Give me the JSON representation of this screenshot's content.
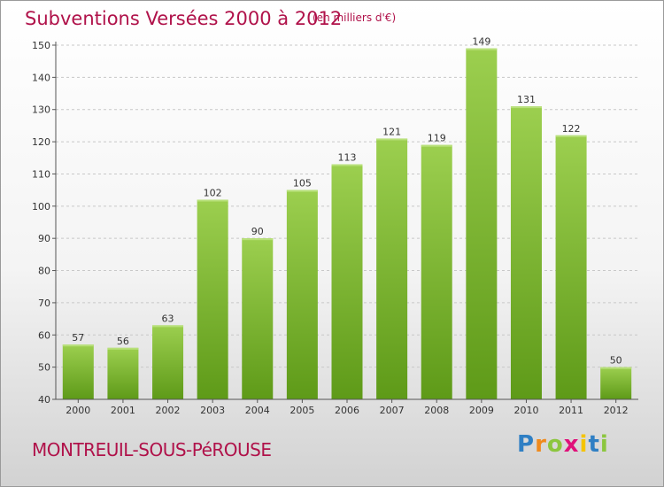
{
  "header": {
    "title": "Subventions Versées 2000 à 2012",
    "unit_note": "(en milliers d'€)"
  },
  "footer": {
    "commune": "MONTREUIL-SOUS-PéROUSE",
    "logo": {
      "text": "Proxiti",
      "letters": [
        {
          "ch": "P",
          "color": "#2f7fc4"
        },
        {
          "ch": "r",
          "color": "#f08a1c"
        },
        {
          "ch": "o",
          "color": "#8cc63f"
        },
        {
          "ch": "x",
          "color": "#e0117a"
        },
        {
          "ch": "i",
          "color": "#f5c400"
        },
        {
          "ch": "t",
          "color": "#2f7fc4"
        },
        {
          "ch": "i",
          "color": "#8cc63f"
        }
      ]
    }
  },
  "colors": {
    "title": "#b0124a",
    "bar_top": "#9ccf4f",
    "bar_bottom": "#5e9a18",
    "grid": "#c8c8c8",
    "axis": "#555555"
  },
  "chart_data": {
    "type": "bar",
    "categories": [
      "2000",
      "2001",
      "2002",
      "2003",
      "2004",
      "2005",
      "2006",
      "2007",
      "2008",
      "2009",
      "2010",
      "2011",
      "2012"
    ],
    "values": [
      57,
      56,
      63,
      102,
      90,
      105,
      113,
      121,
      119,
      149,
      131,
      122,
      50
    ],
    "ylim": [
      40,
      150
    ],
    "yticks": [
      40,
      50,
      60,
      70,
      80,
      90,
      100,
      110,
      120,
      130,
      140,
      150
    ],
    "grid": "horizontal dashed",
    "legend": "none"
  }
}
